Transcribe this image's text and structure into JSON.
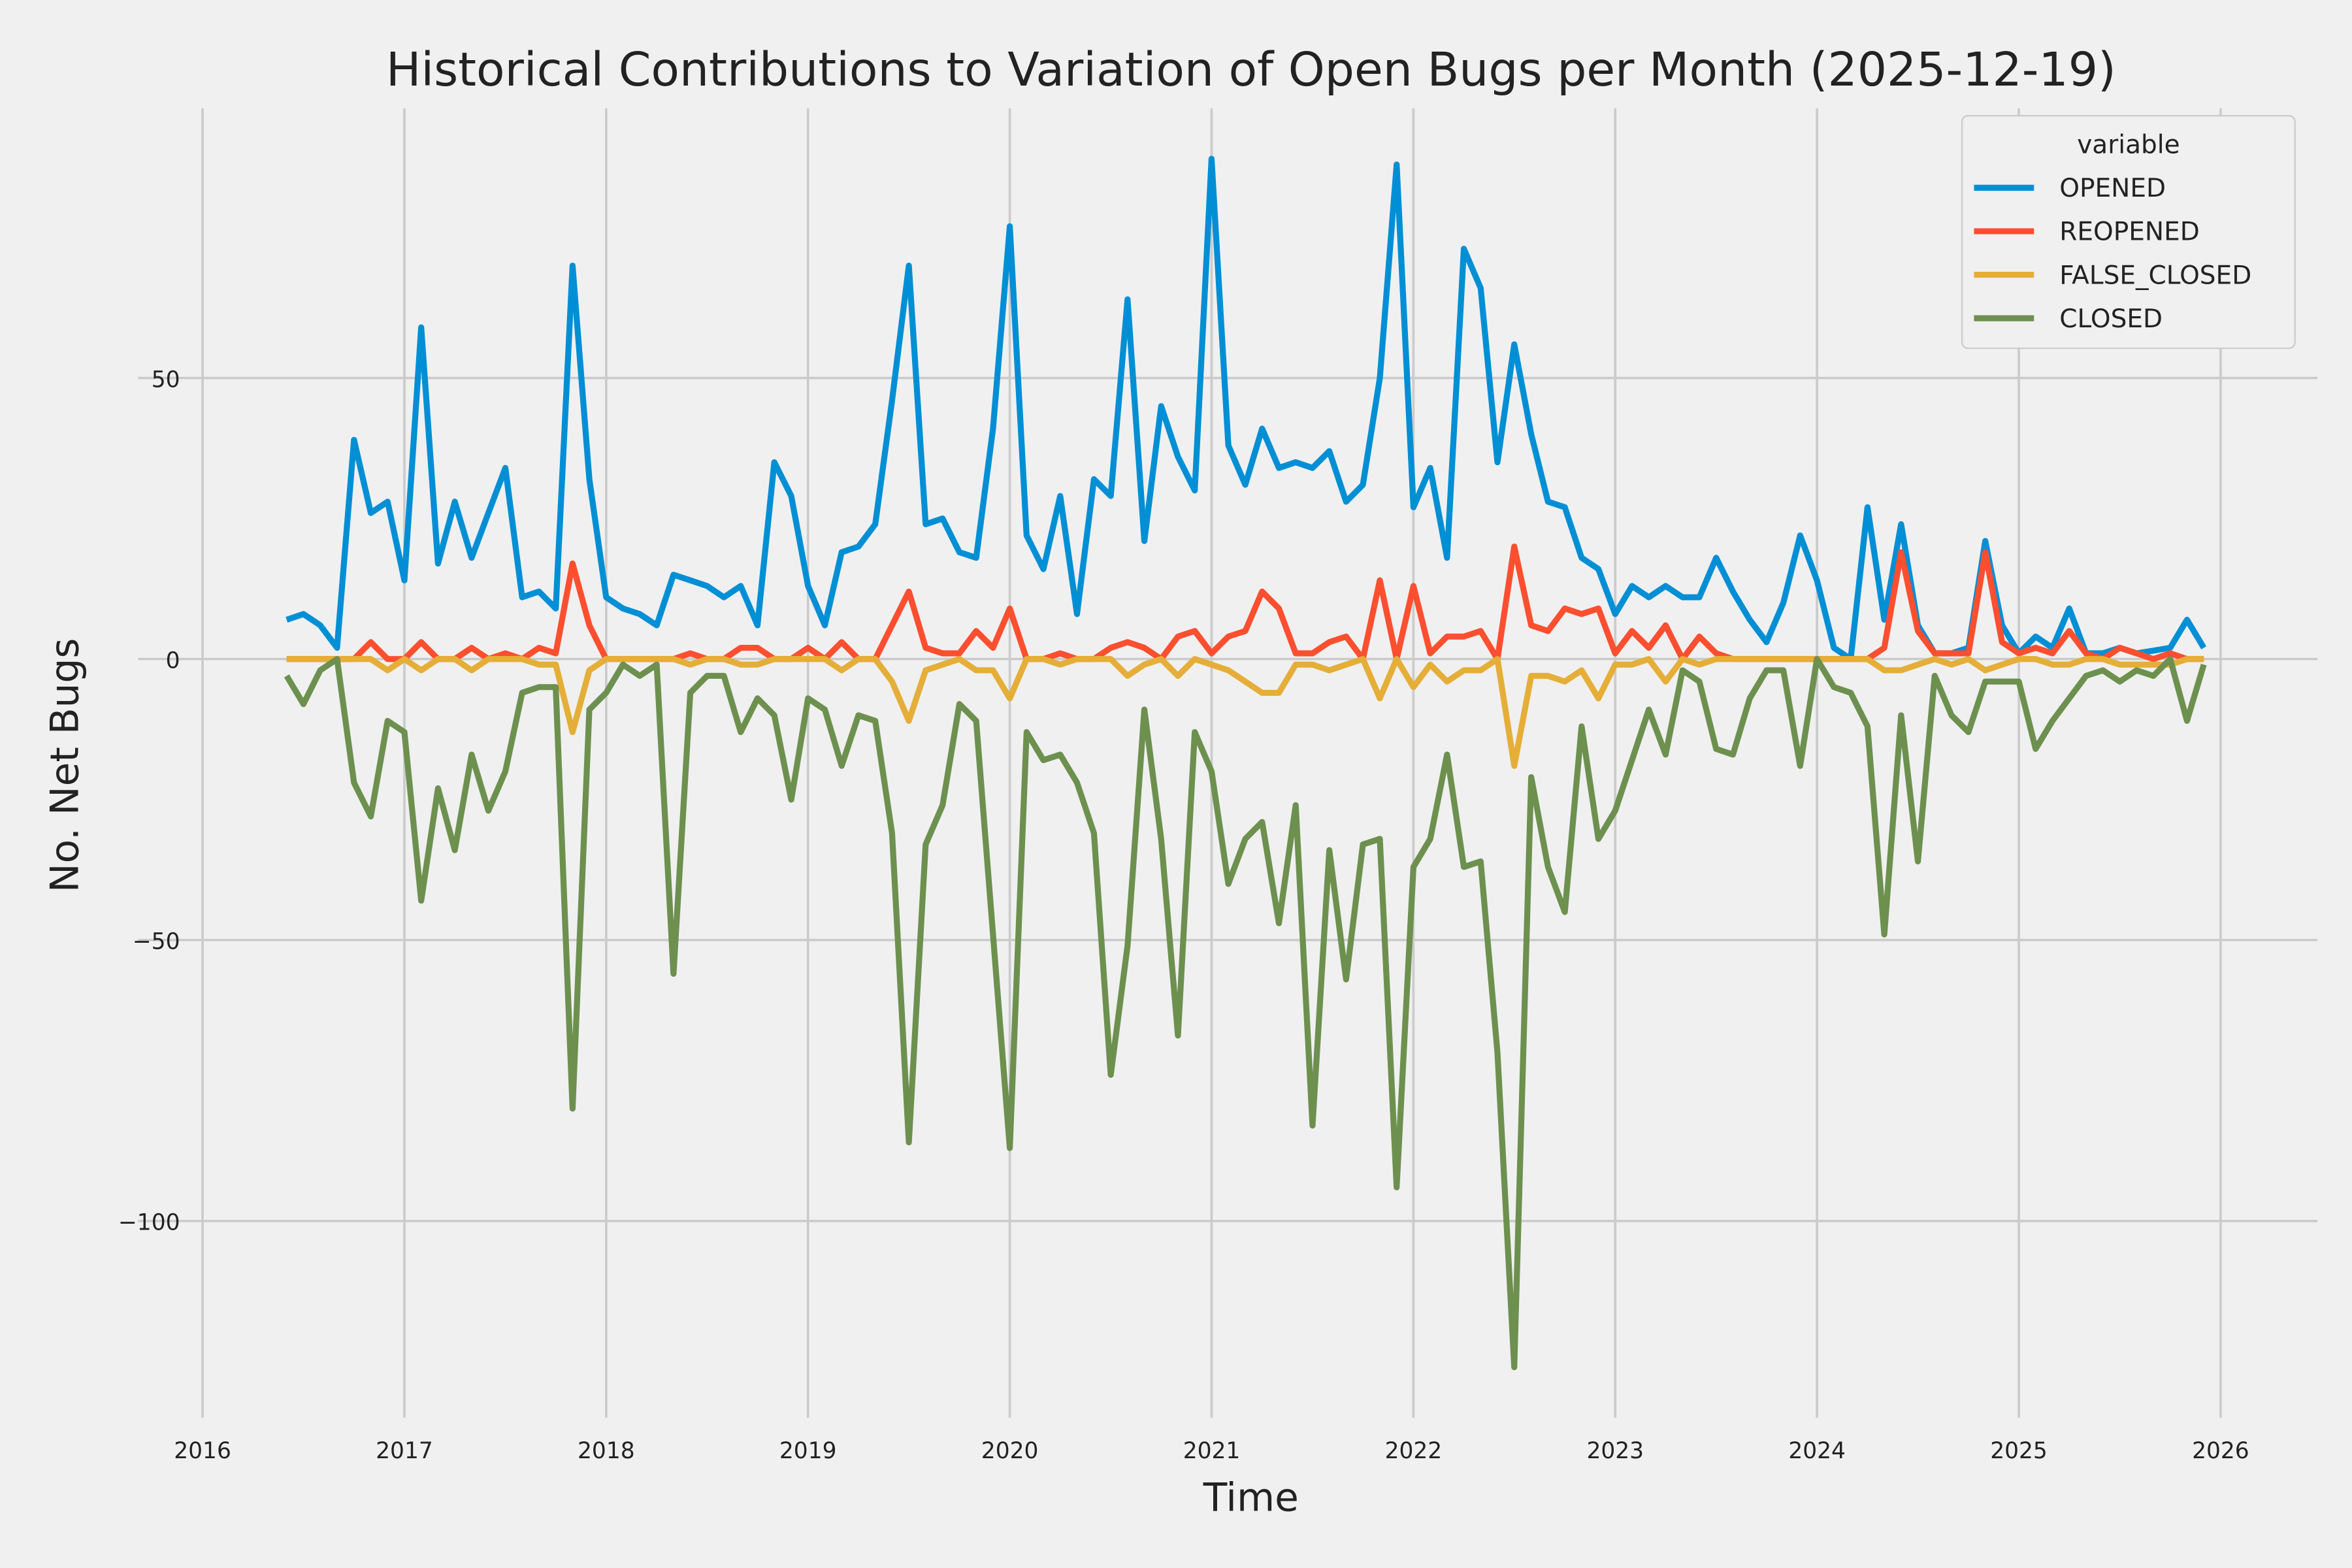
{
  "chart_data": {
    "type": "line",
    "title": "Historical Contributions to Variation of Open Bugs per Month (2025-12-19)",
    "xlabel": "Time",
    "ylabel": "No. Net Bugs",
    "xlim": [
      2015.68,
      2026.48
    ],
    "ylim": [
      -135,
      98
    ],
    "x_ticks": [
      "2016",
      "2017",
      "2018",
      "2019",
      "2020",
      "2021",
      "2022",
      "2023",
      "2024",
      "2025",
      "2026"
    ],
    "y_ticks": [
      -100,
      -50,
      0,
      50
    ],
    "y_tick_labels": [
      "−100",
      "−50",
      "0",
      "50"
    ],
    "grid": true,
    "legend": {
      "title": "variable",
      "placement": "top-right"
    },
    "start_month": "2016-06",
    "series": [
      {
        "name": "OPENED",
        "color": "#008fd5",
        "values": [
          7,
          8,
          6,
          2,
          39,
          26,
          28,
          14,
          59,
          17,
          28,
          18,
          26,
          34,
          11,
          12,
          9,
          70,
          32,
          11,
          9,
          8,
          6,
          15,
          14,
          13,
          11,
          13,
          6,
          35,
          29,
          13,
          6,
          19,
          20,
          24,
          46,
          70,
          24,
          25,
          19,
          18,
          41,
          77,
          22,
          16,
          29,
          8,
          32,
          29,
          64,
          21,
          45,
          36,
          30,
          89,
          38,
          31,
          41,
          34,
          35,
          34,
          37,
          28,
          31,
          50,
          88,
          27,
          34,
          18,
          73,
          66,
          35,
          56,
          40,
          28,
          27,
          18,
          16,
          8,
          13,
          11,
          13,
          11,
          11,
          18,
          12,
          7,
          3,
          10,
          22,
          14,
          2,
          0,
          27,
          7,
          24,
          6,
          1,
          1,
          2,
          21,
          6,
          1,
          4,
          2,
          9,
          1,
          1,
          2,
          1,
          1.5,
          2,
          7,
          2
        ]
      },
      {
        "name": "REOPENED",
        "color": "#fc4f30",
        "values": [
          0,
          0,
          0,
          0,
          0,
          3,
          0,
          0,
          3,
          0,
          0,
          2,
          0,
          1,
          0,
          2,
          1,
          17,
          6,
          0,
          0,
          0,
          0,
          0,
          1,
          0,
          0,
          2,
          2,
          0,
          0,
          2,
          0,
          3,
          0,
          0,
          6,
          12,
          2,
          1,
          1,
          5,
          2,
          9,
          0,
          0,
          1,
          0,
          0,
          2,
          3,
          2,
          0,
          4,
          5,
          1,
          4,
          5,
          12,
          9,
          1,
          1,
          3,
          4,
          0,
          14,
          0,
          13,
          1,
          4,
          4,
          5,
          0,
          20,
          6,
          5,
          9,
          8,
          9,
          1,
          5,
          2,
          6,
          0,
          4,
          1,
          0,
          0,
          0,
          0,
          0,
          0,
          0,
          0,
          0,
          2,
          19,
          5,
          1,
          1,
          1,
          19,
          3,
          1,
          2,
          1,
          5,
          1,
          0,
          2,
          1,
          0,
          1,
          0,
          0
        ]
      },
      {
        "name": "FALSE_CLOSED",
        "color": "#e5ae38",
        "values": [
          0,
          0,
          0,
          0,
          0,
          0,
          -2,
          0,
          -2,
          0,
          0,
          -2,
          0,
          0,
          0,
          -1,
          -1,
          -13,
          -2,
          0,
          0,
          0,
          0,
          0,
          -1,
          0,
          0,
          -1,
          -1,
          0,
          0,
          0,
          0,
          -2,
          0,
          0,
          -4,
          -11,
          -2,
          -1,
          0,
          -2,
          -2,
          -7,
          0,
          0,
          -1,
          0,
          0,
          0,
          -3,
          -1,
          0,
          -3,
          0,
          -1,
          -2,
          -4,
          -6,
          -6,
          -1,
          -1,
          -2,
          -1,
          0,
          -7,
          0,
          -5,
          -1,
          -4,
          -2,
          -2,
          0,
          -19,
          -3,
          -3,
          -4,
          -2,
          -7,
          -1,
          -1,
          0,
          -4,
          0,
          -1,
          0,
          0,
          0,
          0,
          0,
          0,
          0,
          0,
          0,
          0,
          -2,
          -2,
          -1,
          0,
          -1,
          0,
          -2,
          -1,
          0,
          0,
          -1,
          -1,
          0,
          0,
          -1,
          -1,
          -1,
          -1,
          0,
          0
        ]
      },
      {
        "name": "CLOSED",
        "color": "#6d904f",
        "values": [
          -3,
          -8,
          -2,
          0,
          -22,
          -28,
          -11,
          -13,
          -43,
          -23,
          -34,
          -17,
          -27,
          -20,
          -6,
          -5,
          -5,
          -80,
          -9,
          -6,
          -1,
          -3,
          -1,
          -56,
          -6,
          -3,
          -3,
          -13,
          -7,
          -10,
          -25,
          -7,
          -9,
          -19,
          -10,
          -11,
          -31,
          -86,
          -33,
          -26,
          -8,
          -11,
          -49,
          -87,
          -13,
          -18,
          -17,
          -22,
          -31,
          -74,
          -51,
          -9,
          -32,
          -67,
          -13,
          -20,
          -40,
          -32,
          -29,
          -47,
          -26,
          -83,
          -34,
          -57,
          -33,
          -32,
          -94,
          -37,
          -32,
          -17,
          -37,
          -36,
          -70,
          -126,
          -21,
          -37,
          -45,
          -12,
          -32,
          -27,
          -18,
          -9,
          -17,
          -2,
          -4,
          -16,
          -17,
          -7,
          -2,
          -2,
          -19,
          0,
          -5,
          -6,
          -12,
          -49,
          -10,
          -36,
          -3,
          -10,
          -13,
          -4,
          -4,
          -4,
          -16,
          -11,
          -7,
          -3,
          -2,
          -4,
          -2,
          -3,
          0,
          -11,
          -1
        ]
      }
    ]
  }
}
